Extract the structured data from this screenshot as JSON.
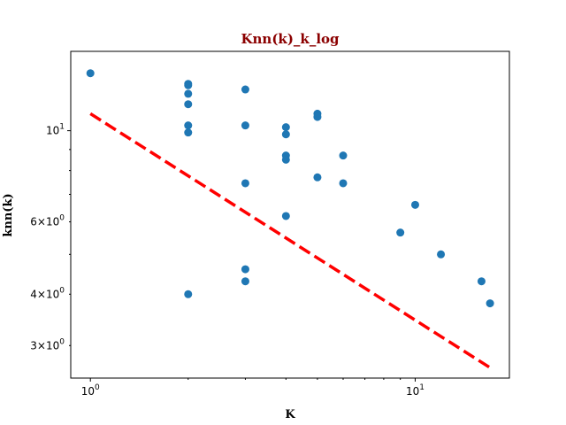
{
  "chart_data": {
    "type": "scatter",
    "title": "Knn(k)_k_log",
    "xlabel": "K",
    "ylabel": "knn(k)",
    "x_scale": "log",
    "y_scale": "log",
    "xlim": [
      0.87,
      19.5
    ],
    "ylim": [
      2.5,
      15.6
    ],
    "grid": false,
    "colors": {
      "title": "#8b0000",
      "points": "#1f77b4",
      "fit_line": "#ff0000"
    },
    "x_ticks": [
      {
        "value": 1,
        "label": "10^0"
      },
      {
        "value": 10,
        "label": "10^1"
      }
    ],
    "y_ticks": [
      {
        "value": 3,
        "label": "3×10^0"
      },
      {
        "value": 4,
        "label": "4×10^0"
      },
      {
        "value": 6,
        "label": "6×10^0"
      },
      {
        "value": 10,
        "label": "10^1"
      }
    ],
    "series": [
      {
        "points": [
          [
            1,
            13.8
          ],
          [
            2,
            13.0
          ],
          [
            2,
            12.9
          ],
          [
            2,
            12.3
          ],
          [
            2,
            11.6
          ],
          [
            2,
            10.3
          ],
          [
            2,
            9.9
          ],
          [
            2,
            4.0
          ],
          [
            3,
            12.6
          ],
          [
            3,
            10.3
          ],
          [
            3,
            7.45
          ],
          [
            3,
            4.6
          ],
          [
            3,
            4.3
          ],
          [
            4,
            10.2
          ],
          [
            4,
            9.8
          ],
          [
            4,
            8.7
          ],
          [
            4,
            8.5
          ],
          [
            4,
            6.2
          ],
          [
            5,
            11.0
          ],
          [
            5,
            10.8
          ],
          [
            5,
            7.7
          ],
          [
            6,
            8.7
          ],
          [
            6,
            7.45
          ],
          [
            9,
            5.65
          ],
          [
            10,
            6.6
          ],
          [
            12,
            5.0
          ],
          [
            16,
            4.3
          ],
          [
            17,
            3.8
          ]
        ]
      },
      {
        "style": "dashed",
        "points": [
          [
            1,
            11.0
          ],
          [
            17,
            2.65
          ]
        ]
      }
    ]
  }
}
